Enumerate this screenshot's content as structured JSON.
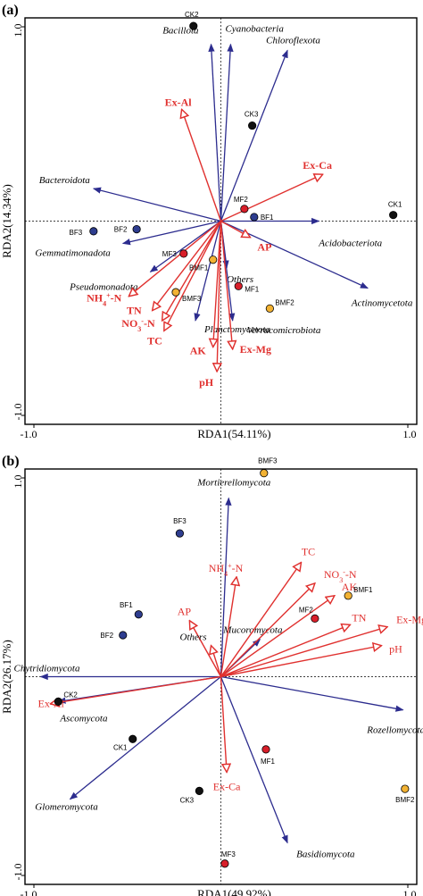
{
  "colors": {
    "taxa_arrow": "#2c2c8e",
    "env_arrow": "#e0312f",
    "CK": "#111111",
    "BF": "#2e3d8f",
    "MF": "#d81f2a",
    "BMF": "#f2b233"
  },
  "chart_data": [
    {
      "type": "scatter",
      "panel_label": "(a)",
      "xlabel": "RDA1(54.11%)",
      "ylabel": "RDA2(14.34%)",
      "xlim": [
        -1.0,
        1.0
      ],
      "ylim": [
        -1.0,
        1.0
      ],
      "x_tick_labels": [
        "-1.0",
        "1.0"
      ],
      "y_tick_labels": [
        "1.0",
        "-1.0"
      ],
      "env_bold": true,
      "samples": [
        {
          "label": "CK2",
          "group": "CK",
          "x": -0.14,
          "y": 0.96
        },
        {
          "label": "CK3",
          "group": "CK",
          "x": 0.16,
          "y": 0.47
        },
        {
          "label": "CK1",
          "group": "CK",
          "x": 0.88,
          "y": 0.03
        },
        {
          "label": "BF3",
          "group": "BF",
          "x": -0.65,
          "y": -0.05
        },
        {
          "label": "BF2",
          "group": "BF",
          "x": -0.43,
          "y": -0.04
        },
        {
          "label": "BF1",
          "group": "BF",
          "x": 0.17,
          "y": 0.02
        },
        {
          "label": "MF2",
          "group": "MF",
          "x": 0.12,
          "y": 0.06
        },
        {
          "label": "MF3",
          "group": "MF",
          "x": -0.19,
          "y": -0.16
        },
        {
          "label": "MF1",
          "group": "MF",
          "x": 0.09,
          "y": -0.32
        },
        {
          "label": "BMF1",
          "group": "BMF",
          "x": -0.04,
          "y": -0.19
        },
        {
          "label": "BMF3",
          "group": "BMF",
          "x": -0.23,
          "y": -0.35
        },
        {
          "label": "BMF2",
          "group": "BMF",
          "x": 0.25,
          "y": -0.43
        }
      ],
      "taxa": [
        {
          "name": "Bacillota",
          "x": -0.05,
          "y": 0.87
        },
        {
          "name": "Cyanobacteria",
          "x": 0.05,
          "y": 0.87
        },
        {
          "name": "Chloroflexota",
          "x": 0.34,
          "y": 0.84
        },
        {
          "name": "Bacteroidota",
          "x": -0.65,
          "y": 0.16
        },
        {
          "name": "Acidobacteriota",
          "x": 0.5,
          "y": 0.0
        },
        {
          "name": "Gemmatimonadota",
          "x": -0.5,
          "y": -0.11
        },
        {
          "name": "Pseudomonadota",
          "x": -0.36,
          "y": -0.25
        },
        {
          "name": "Others",
          "x": 0.03,
          "y": -0.23
        },
        {
          "name": "Actinomycetota",
          "x": 0.75,
          "y": -0.33
        },
        {
          "name": "Planctomycetota",
          "x": -0.13,
          "y": -0.49
        },
        {
          "name": "Verrucomicrobiota",
          "x": 0.06,
          "y": -0.49
        }
      ],
      "env": [
        {
          "name": "Ex-Al",
          "x": -0.2,
          "y": 0.55
        },
        {
          "name": "Ex-Ca",
          "x": 0.52,
          "y": 0.23
        },
        {
          "name": "AP",
          "x": 0.15,
          "y": -0.08
        },
        {
          "name": "NH4+-N",
          "x": -0.47,
          "y": -0.37
        },
        {
          "name": "TN",
          "x": -0.35,
          "y": -0.44
        },
        {
          "name": "NO3--N",
          "x": -0.3,
          "y": -0.49
        },
        {
          "name": "TC",
          "x": -0.29,
          "y": -0.54
        },
        {
          "name": "AK",
          "x": -0.04,
          "y": -0.62
        },
        {
          "name": "Ex-Mg",
          "x": 0.06,
          "y": -0.63
        },
        {
          "name": "pH",
          "x": -0.02,
          "y": -0.74
        }
      ]
    },
    {
      "type": "scatter",
      "panel_label": "(b)",
      "xlabel": "RDA1(49.92%)",
      "ylabel": "RDA2(26.17%)",
      "xlim": [
        -1.0,
        1.0
      ],
      "ylim": [
        -1.0,
        1.0
      ],
      "x_tick_labels": [
        "-1.0",
        "1.0"
      ],
      "y_tick_labels": [
        "1.0",
        "-1.0"
      ],
      "env_bold": false,
      "samples": [
        {
          "label": "BMF3",
          "group": "BMF",
          "x": 0.22,
          "y": 0.98
        },
        {
          "label": "BF3",
          "group": "BF",
          "x": -0.21,
          "y": 0.69
        },
        {
          "label": "BMF1",
          "group": "BMF",
          "x": 0.65,
          "y": 0.39
        },
        {
          "label": "BF1",
          "group": "BF",
          "x": -0.42,
          "y": 0.3
        },
        {
          "label": "MF2",
          "group": "MF",
          "x": 0.48,
          "y": 0.28
        },
        {
          "label": "BF2",
          "group": "BF",
          "x": -0.5,
          "y": 0.2
        },
        {
          "label": "CK2",
          "group": "CK",
          "x": -0.83,
          "y": -0.12
        },
        {
          "label": "CK1",
          "group": "CK",
          "x": -0.45,
          "y": -0.3
        },
        {
          "label": "MF1",
          "group": "MF",
          "x": 0.23,
          "y": -0.35
        },
        {
          "label": "CK3",
          "group": "CK",
          "x": -0.11,
          "y": -0.55
        },
        {
          "label": "BMF2",
          "group": "BMF",
          "x": 0.94,
          "y": -0.54
        },
        {
          "label": "MF3",
          "group": "MF",
          "x": 0.02,
          "y": -0.9
        }
      ],
      "taxa": [
        {
          "name": "Mortierellomycota",
          "x": 0.04,
          "y": 0.86
        },
        {
          "name": "Mucoromycota",
          "x": 0.2,
          "y": 0.18
        },
        {
          "name": "Chytridiomycota",
          "x": -0.92,
          "y": 0.0
        },
        {
          "name": "Ascomycota",
          "x": -0.83,
          "y": -0.12
        },
        {
          "name": "Rozellomycota",
          "x": 0.93,
          "y": -0.16
        },
        {
          "name": "Glomeromycota",
          "x": -0.77,
          "y": -0.59
        },
        {
          "name": "Basidiomycota",
          "x": 0.34,
          "y": -0.8
        }
      ],
      "env": [
        {
          "name": "NH4+-N",
          "x": 0.08,
          "y": 0.48
        },
        {
          "name": "AP",
          "x": -0.16,
          "y": 0.27
        },
        {
          "name": "Others",
          "x": -0.05,
          "y": 0.15
        },
        {
          "name": "TC",
          "x": 0.41,
          "y": 0.55
        },
        {
          "name": "NO3--N",
          "x": 0.48,
          "y": 0.45
        },
        {
          "name": "AK",
          "x": 0.58,
          "y": 0.39
        },
        {
          "name": "TN",
          "x": 0.66,
          "y": 0.25
        },
        {
          "name": "Ex-Mg",
          "x": 0.85,
          "y": 0.24
        },
        {
          "name": "pH",
          "x": 0.82,
          "y": 0.15
        },
        {
          "name": "Ex-Al",
          "x": -0.87,
          "y": -0.13
        },
        {
          "name": "Ex-Ca",
          "x": 0.03,
          "y": -0.46
        }
      ]
    }
  ]
}
